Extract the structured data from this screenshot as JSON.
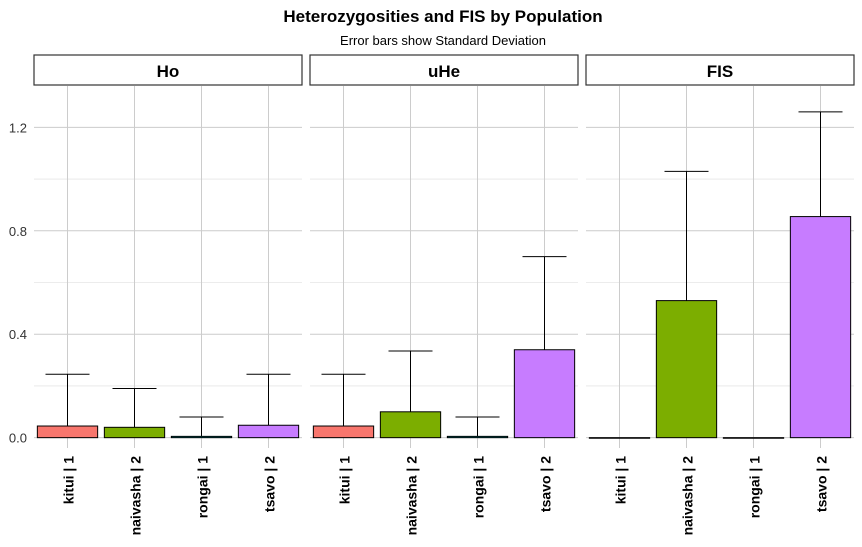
{
  "chart_data": {
    "type": "bar",
    "title": "Heterozygosities and FIS by Population",
    "subtitle": "Error bars show Standard Deviation",
    "xlabel": "",
    "ylabel": "",
    "ylim": [
      -0.04,
      1.36
    ],
    "yticks": [
      "0.0",
      "0.4",
      "0.8",
      "1.2"
    ],
    "grid": true,
    "legend": "none",
    "categories": [
      "kitui | 1",
      "naivasha | 2",
      "rongai | 1",
      "tsavo | 2"
    ],
    "colors": [
      "#F8766D",
      "#7CAE00",
      "#00BFC4",
      "#C77CFF"
    ],
    "facets": [
      {
        "label": "Ho",
        "values": [
          0.045,
          0.04,
          0.005,
          0.048
        ],
        "sd": [
          0.2,
          0.15,
          0.075,
          0.197
        ]
      },
      {
        "label": "uHe",
        "values": [
          0.045,
          0.1,
          0.005,
          0.34
        ],
        "sd": [
          0.2,
          0.235,
          0.075,
          0.36
        ]
      },
      {
        "label": "FIS",
        "values": [
          0.0,
          0.53,
          0.0,
          0.855
        ],
        "sd": [
          0.0,
          0.5,
          0.0,
          0.405
        ]
      }
    ]
  }
}
